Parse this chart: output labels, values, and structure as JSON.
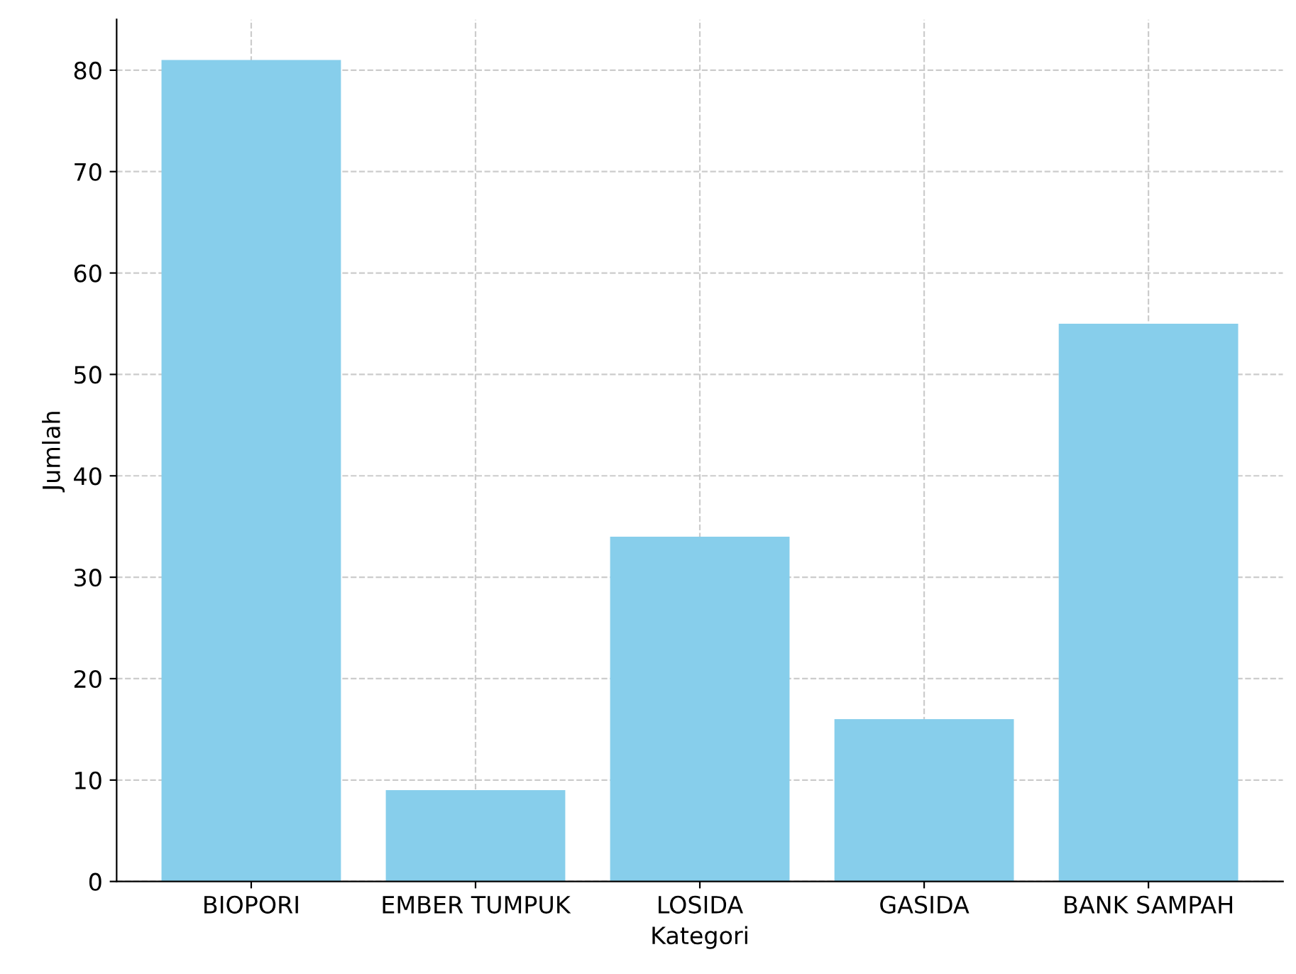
{
  "chart_data": {
    "type": "bar",
    "xlabel": "Kategori",
    "ylabel": "Jumlah",
    "categories": [
      "BIOPORI",
      "EMBER TUMPUK",
      "LOSIDA",
      "GASIDA",
      "BANK SAMPAH"
    ],
    "values": [
      81,
      9,
      34,
      16,
      55
    ],
    "color": "#87ceeb",
    "ylim": [
      0,
      85
    ],
    "yticks": [
      0,
      10,
      20,
      30,
      40,
      50,
      60,
      70,
      80
    ],
    "grid": true
  }
}
